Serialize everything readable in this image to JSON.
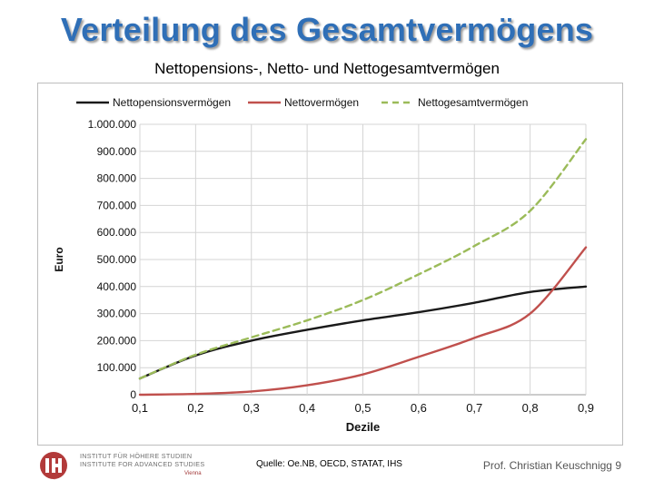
{
  "slide": {
    "title": "Verteilung des Gesamtvermögens",
    "subtitle": "Nettopensions-, Netto- und Nettogesamtvermögen",
    "source": "Quelle: Oe.NB, OECD, STATAT, IHS",
    "author": "Prof. Christian Keuschnigg 9"
  },
  "logo": {
    "mark": "IHS",
    "line1": "INSTITUT FÜR HÖHERE STUDIEN",
    "line2": "INSTITUTE FOR ADVANCED STUDIES",
    "city": "Vienna"
  },
  "chart_data": {
    "type": "line",
    "title": "Nettopensions-, Netto- und Nettogesamtvermögen",
    "xlabel": "Dezile",
    "ylabel": "Euro",
    "x": [
      0.1,
      0.2,
      0.3,
      0.4,
      0.5,
      0.6,
      0.7,
      0.8,
      0.9
    ],
    "x_tick_labels": [
      "0,1",
      "0,2",
      "0,3",
      "0,4",
      "0,5",
      "0,6",
      "0,7",
      "0,8",
      "0,9"
    ],
    "xlim": [
      0.1,
      0.9
    ],
    "ylim": [
      0,
      1000000
    ],
    "y_ticks": [
      0,
      100000,
      200000,
      300000,
      400000,
      500000,
      600000,
      700000,
      800000,
      900000,
      1000000
    ],
    "y_tick_labels": [
      "0",
      "100.000",
      "200.000",
      "300.000",
      "400.000",
      "500.000",
      "600.000",
      "700.000",
      "800.000",
      "900.000",
      "1.000.000"
    ],
    "grid": true,
    "legend_position": "top",
    "series": [
      {
        "name": "Nettopensionsvermögen",
        "color": "#1a1a1a",
        "dash": "solid",
        "values": [
          60000,
          145000,
          200000,
          240000,
          275000,
          305000,
          340000,
          380000,
          400000
        ]
      },
      {
        "name": "Nettovermögen",
        "color": "#c0504d",
        "dash": "solid",
        "values": [
          0,
          3000,
          12000,
          35000,
          75000,
          140000,
          210000,
          300000,
          545000
        ]
      },
      {
        "name": "Nettogesamtvermögen",
        "color": "#9bbb59",
        "dash": "dashed",
        "values": [
          60000,
          148000,
          212000,
          275000,
          350000,
          445000,
          550000,
          680000,
          945000
        ]
      }
    ]
  }
}
